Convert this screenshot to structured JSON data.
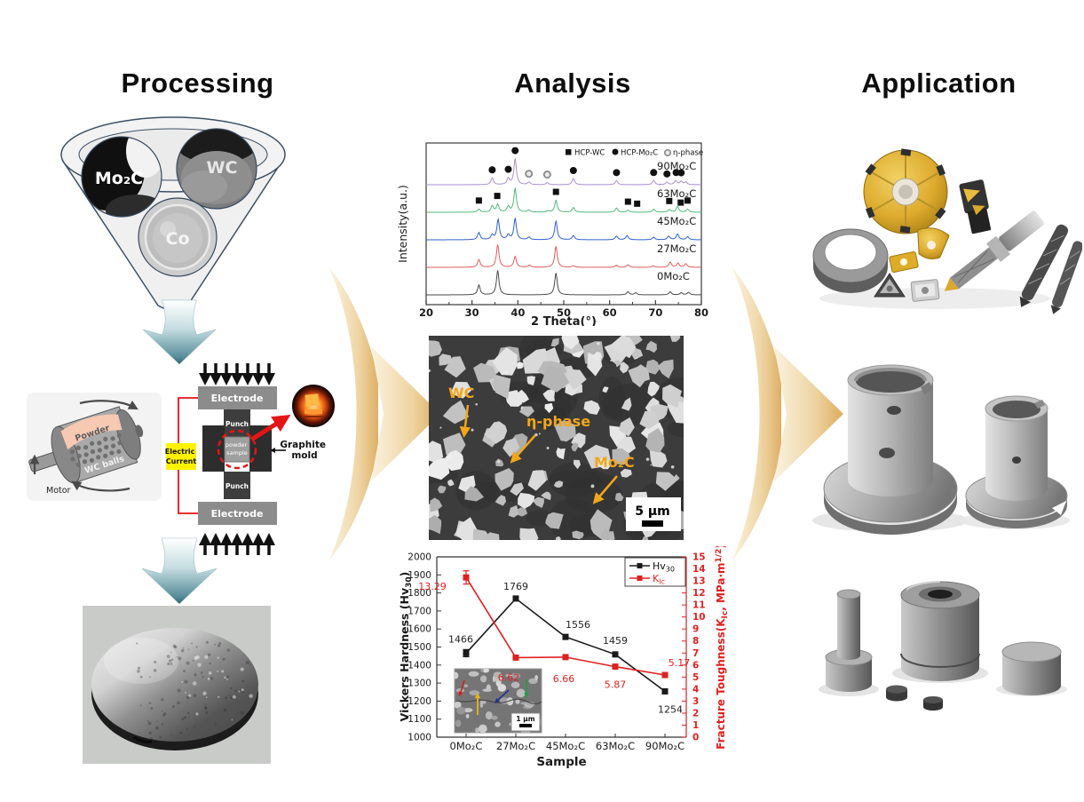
{
  "figure": {
    "titles": {
      "processing": "Processing",
      "analysis": "Analysis",
      "application": "Application"
    }
  },
  "palette": {
    "flow_arrow_tan": "#e4bc7e",
    "process_arrow_teal": "#4f8d9b",
    "sps_alert_red": "#e51515",
    "current_yellow": "#fff200",
    "sem_label_orange": "#f2a71b"
  },
  "processing": {
    "funnel": {
      "mo2c": "Mo₂C",
      "wc": "WC",
      "co": "Co"
    },
    "ball_mill": {
      "powder": "Powder",
      "balls": "WC balls",
      "motor": "Motor"
    },
    "sps": {
      "electrode_top": "Electrode",
      "electrode_bottom": "Electrode",
      "punch_top": "Punch",
      "punch_bottom": "Punch",
      "sample_line1": "powder",
      "sample_line2": "sample",
      "current_line1": "Electric",
      "current_line2": "Current",
      "mold_line1": "Graphite",
      "mold_line2": "mold"
    }
  },
  "sem": {
    "label_wc": "WC",
    "label_eta": "η-phase",
    "label_mo2c": "Mo₂C",
    "scale": "5 μm",
    "label_color": "#f2a71b"
  },
  "chart_data": [
    {
      "id": "xrd",
      "type": "line",
      "title": "",
      "xlabel": "2 Theta(°)",
      "ylabel": "Intensity(a.u.)",
      "xlim": [
        20,
        80
      ],
      "xticks": [
        20,
        30,
        40,
        50,
        60,
        70,
        80
      ],
      "legend": [
        {
          "marker": "filled-square",
          "label": "HCP-WC"
        },
        {
          "marker": "filled-circle",
          "label": "HCP-Mo₂C"
        },
        {
          "marker": "open-circle",
          "label": "η-phase"
        }
      ],
      "series": [
        {
          "name": "0Mo₂C",
          "color": "#4a4a4a",
          "peaks": [
            [
              31.5,
              0.38
            ],
            [
              35.6,
              0.95
            ],
            [
              48.3,
              0.85
            ],
            [
              64.0,
              0.12
            ],
            [
              65.7,
              0.08
            ],
            [
              73.2,
              0.12
            ],
            [
              75.6,
              0.08
            ],
            [
              77.2,
              0.1
            ]
          ]
        },
        {
          "name": "27Mo₂C",
          "color": "#e05c5c",
          "peaks": [
            [
              31.5,
              0.3
            ],
            [
              35.6,
              0.88
            ],
            [
              39.4,
              0.42
            ],
            [
              42.5,
              0.08
            ],
            [
              48.3,
              0.82
            ],
            [
              52.1,
              0.06
            ],
            [
              61.5,
              0.08
            ],
            [
              64.0,
              0.1
            ],
            [
              69.5,
              0.06
            ],
            [
              73.2,
              0.2
            ],
            [
              74.9,
              0.16
            ],
            [
              76.6,
              0.14
            ]
          ]
        },
        {
          "name": "45Mo₂C",
          "color": "#2f5fd0",
          "peaks": [
            [
              31.5,
              0.28
            ],
            [
              34.4,
              0.18
            ],
            [
              35.7,
              0.78
            ],
            [
              37.9,
              0.18
            ],
            [
              39.4,
              0.82
            ],
            [
              42.4,
              0.1
            ],
            [
              48.3,
              0.72
            ],
            [
              52.1,
              0.16
            ],
            [
              61.5,
              0.14
            ],
            [
              63.8,
              0.16
            ],
            [
              69.6,
              0.1
            ],
            [
              72.9,
              0.14
            ],
            [
              74.8,
              0.22
            ],
            [
              77.0,
              0.12
            ]
          ]
        },
        {
          "name": "63Mo₂C",
          "color": "#52b878",
          "peaks": [
            [
              31.5,
              0.12
            ],
            [
              34.4,
              0.24
            ],
            [
              35.6,
              0.3
            ],
            [
              37.9,
              0.22
            ],
            [
              39.4,
              0.92
            ],
            [
              42.4,
              0.08
            ],
            [
              46.5,
              0.05
            ],
            [
              48.3,
              0.46
            ],
            [
              52.1,
              0.18
            ],
            [
              61.5,
              0.16
            ],
            [
              64.0,
              0.08
            ],
            [
              69.6,
              0.12
            ],
            [
              73.0,
              0.1
            ],
            [
              74.8,
              0.22
            ],
            [
              77.0,
              0.12
            ]
          ]
        },
        {
          "name": "90Mo₂C",
          "color": "#a98fd4",
          "peaks": [
            [
              34.4,
              0.26
            ],
            [
              37.9,
              0.24
            ],
            [
              39.4,
              1.0
            ],
            [
              42.4,
              0.1
            ],
            [
              46.4,
              0.08
            ],
            [
              52.1,
              0.24
            ],
            [
              61.5,
              0.16
            ],
            [
              69.6,
              0.16
            ],
            [
              72.5,
              0.1
            ],
            [
              74.4,
              0.16
            ],
            [
              75.6,
              0.13
            ],
            [
              76.6,
              0.1
            ]
          ]
        }
      ],
      "peak_markers": {
        "filled_square_x": [
          31.5,
          35.5,
          48.3,
          64.0,
          66.0,
          73.0,
          75.5,
          77.0
        ],
        "filled_square_over": "63Mo₂C",
        "filled_circle_x": [
          34.4,
          37.9,
          39.4,
          52.1,
          61.5,
          69.6,
          72.5,
          74.5,
          75.6
        ],
        "filled_circle_over": "90Mo₂C",
        "open_circle_x": [
          42.4,
          46.4
        ],
        "open_circle_over": "90Mo₂C"
      }
    },
    {
      "id": "mech",
      "type": "line",
      "xlabel": "Sample",
      "categories": [
        "0Mo₂C",
        "27Mo₂C",
        "45Mo₂C",
        "63Mo₂C",
        "90Mo₂C"
      ],
      "left_axis": {
        "label_pre": "Vickers Hardness (Hv",
        "label_sub": "30",
        "label_post": ")",
        "min": 1000,
        "max": 2000,
        "step": 100,
        "color": "#1a1a1a"
      },
      "right_axis": {
        "label_pre": "Fracture Toughness(K",
        "label_sub": "Ic",
        "label_mid": ", MPa·m",
        "label_sup": "1/2",
        "label_post": ")",
        "min": 0,
        "max": 15,
        "step": 1,
        "color": "#e02020"
      },
      "series": [
        {
          "name_main": "Hv",
          "name_sub": "30",
          "axis": "left",
          "color": "#1a1a1a",
          "values": [
            1466,
            1769,
            1556,
            1459,
            1254
          ],
          "point_labels": [
            "1466",
            "1769",
            "1556",
            "1459",
            "1254"
          ],
          "error_first": 20
        },
        {
          "name_main": "K",
          "name_sub": "Ic",
          "axis": "right",
          "color": "#e02020",
          "values": [
            13.29,
            6.62,
            6.66,
            5.87,
            5.17
          ],
          "point_labels": [
            "13.29",
            "6.62",
            "6.66",
            "5.87",
            "5.17"
          ],
          "error_first": 0.55
        }
      ],
      "inset_scale": "1 μm"
    }
  ]
}
